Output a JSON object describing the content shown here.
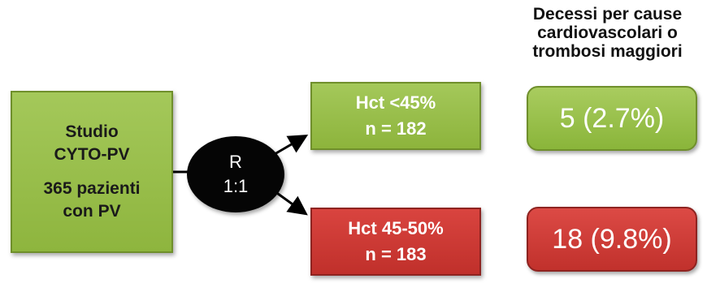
{
  "header": {
    "lines": [
      "Decessi per cause",
      "cardiovascolari o",
      "trombosi maggiori"
    ]
  },
  "study": {
    "lines": [
      "Studio",
      "CYTO-PV"
    ],
    "lines2": [
      "365 pazienti",
      "con PV"
    ]
  },
  "randomization": {
    "line1": "R",
    "line2": "1:1"
  },
  "arms": [
    {
      "line1": "Hct <45%",
      "line2": "n = 182",
      "color": "#8db43c"
    },
    {
      "line1": "Hct 45-50%",
      "line2": "n = 183",
      "color": "#c0302b"
    }
  ],
  "results": [
    {
      "value": "5 (2.7%)",
      "color": "#8ab53a"
    },
    {
      "value": "18 (9.8%)",
      "color": "#c1312c"
    }
  ]
}
